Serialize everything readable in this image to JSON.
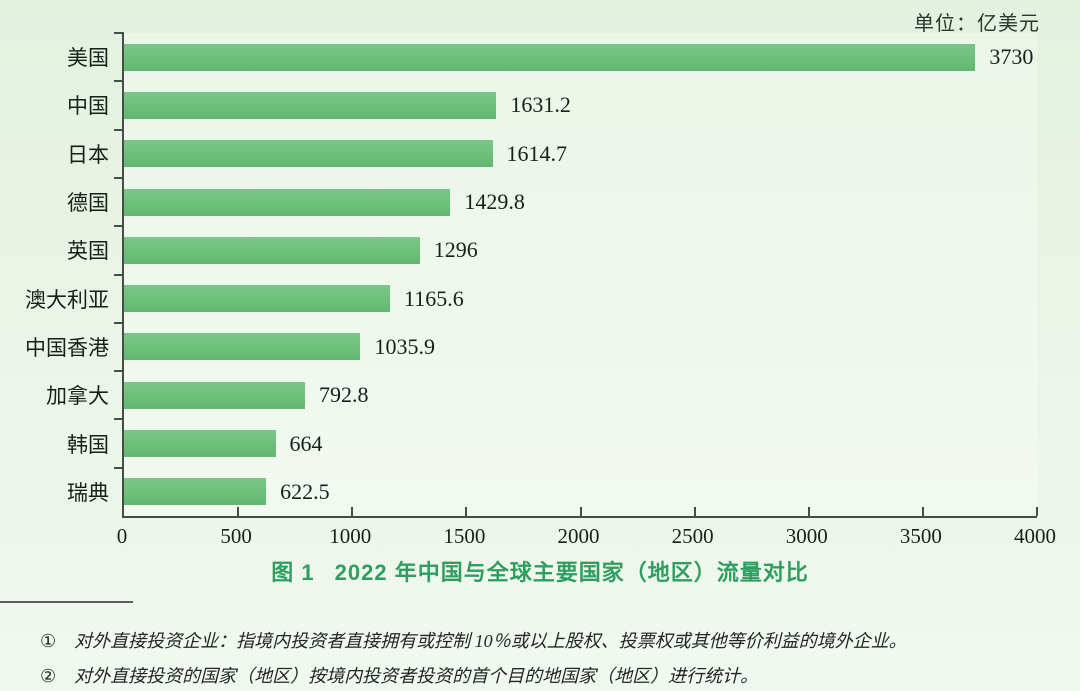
{
  "page": {
    "unit_label": "单位：亿美元"
  },
  "chart_data": {
    "type": "bar",
    "orientation": "horizontal",
    "title": "图 1　2022 年中国与全球主要国家（地区）流量对比",
    "unit": "亿美元",
    "categories": [
      "美国",
      "中国",
      "日本",
      "德国",
      "英国",
      "澳大利亚",
      "中国香港",
      "加拿大",
      "韩国",
      "瑞典"
    ],
    "values": [
      3730,
      1631.2,
      1614.7,
      1429.8,
      1296,
      1165.6,
      1035.9,
      792.8,
      664,
      622.5
    ],
    "value_labels": [
      "3730",
      "1631.2",
      "1614.7",
      "1429.8",
      "1296",
      "1165.6",
      "1035.9",
      "792.8",
      "664",
      "622.5"
    ],
    "xlabel": "",
    "ylabel": "",
    "xlim": [
      0,
      4000
    ],
    "x_ticks": [
      0,
      500,
      1000,
      1500,
      2000,
      2500,
      3000,
      3500,
      4000
    ],
    "grid": false,
    "legend": "none",
    "bar_color": "#6abd77",
    "background_color": "#eaf4e7",
    "title_color": "#2f9e5f"
  },
  "caption": {
    "figure_label": "图 1",
    "title_text": "2022 年中国与全球主要国家（地区）流量对比"
  },
  "footnotes": [
    {
      "marker": "①",
      "text": "对外直接投资企业：指境内投资者直接拥有或控制 10％或以上股权、投票权或其他等价利益的境外企业。"
    },
    {
      "marker": "②",
      "text": "对外直接投资的国家（地区）按境内投资者投资的首个目的地国家（地区）进行统计。"
    }
  ]
}
